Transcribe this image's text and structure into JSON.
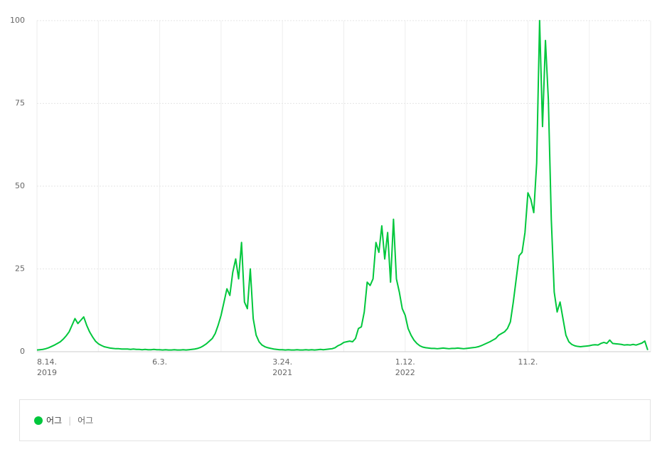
{
  "chart_data": {
    "type": "line",
    "categories": [
      "8.14.",
      null,
      null,
      null,
      null,
      null,
      null,
      null,
      null,
      null,
      null,
      null,
      null,
      null,
      null,
      null,
      null,
      null,
      null,
      null,
      null,
      null,
      null,
      null,
      null,
      null,
      null,
      null,
      null,
      null,
      null,
      null,
      null,
      null,
      null,
      null,
      null,
      null,
      null,
      null,
      null,
      null,
      "6.3.",
      null,
      null,
      null,
      null,
      null,
      null,
      null,
      null,
      null,
      null,
      null,
      null,
      null,
      null,
      null,
      null,
      null,
      null,
      null,
      null,
      null,
      null,
      null,
      null,
      null,
      null,
      null,
      null,
      null,
      null,
      null,
      null,
      null,
      null,
      null,
      null,
      null,
      null,
      null,
      null,
      null,
      "3.24.",
      null,
      null,
      null,
      null,
      null,
      null,
      null,
      null,
      null,
      null,
      null,
      null,
      null,
      null,
      null,
      null,
      null,
      null,
      null,
      null,
      null,
      null,
      null,
      null,
      null,
      null,
      null,
      null,
      null,
      null,
      null,
      null,
      null,
      null,
      null,
      null,
      null,
      null,
      null,
      null,
      null,
      "1.12.",
      null,
      null,
      null,
      null,
      null,
      null,
      null,
      null,
      null,
      null,
      null,
      null,
      null,
      null,
      null,
      null,
      null,
      null,
      null,
      null,
      null,
      null,
      null,
      null,
      null,
      null,
      null,
      null,
      null,
      null,
      null,
      null,
      null,
      null,
      null,
      null,
      null,
      null,
      null,
      null,
      null,
      "11.2.",
      null,
      null,
      null,
      null,
      null,
      null,
      null,
      null,
      null,
      null,
      null,
      null,
      null,
      null,
      null,
      null,
      null,
      null,
      null,
      null,
      null,
      null,
      null,
      null,
      null,
      null,
      null,
      null,
      null,
      null,
      null,
      null,
      null,
      null,
      null,
      null,
      null,
      null,
      null,
      null,
      null
    ],
    "category_years": [
      "2019",
      null,
      null,
      null,
      null,
      null,
      null,
      null,
      null,
      null,
      null,
      null,
      null,
      null,
      null,
      null,
      null,
      null,
      null,
      null,
      null,
      null,
      null,
      null,
      null,
      null,
      null,
      null,
      null,
      null,
      null,
      null,
      null,
      null,
      null,
      null,
      null,
      null,
      null,
      null,
      null,
      null,
      null,
      null,
      null,
      null,
      null,
      null,
      null,
      null,
      null,
      null,
      null,
      null,
      null,
      null,
      null,
      null,
      null,
      null,
      null,
      null,
      null,
      null,
      null,
      null,
      null,
      null,
      null,
      null,
      null,
      null,
      null,
      null,
      null,
      null,
      null,
      null,
      null,
      null,
      null,
      null,
      null,
      null,
      "2021",
      null,
      null,
      null,
      null,
      null,
      null,
      null,
      null,
      null,
      null,
      null,
      null,
      null,
      null,
      null,
      null,
      null,
      null,
      null,
      null,
      null,
      null,
      null,
      null,
      null,
      null,
      null,
      null,
      null,
      null,
      null,
      null,
      null,
      null,
      null,
      null,
      null,
      null,
      null,
      null,
      null,
      "2022",
      null,
      null,
      null,
      null,
      null,
      null,
      null,
      null,
      null,
      null,
      null,
      null,
      null,
      null,
      null,
      null,
      null,
      null,
      null,
      null,
      null,
      null,
      null,
      null,
      null,
      null,
      null,
      null,
      null,
      null,
      null,
      null,
      null,
      null,
      null,
      null,
      null,
      null,
      null,
      null,
      null,
      null,
      null,
      null,
      null,
      null,
      null,
      null,
      null,
      null,
      null,
      null,
      null,
      null,
      null,
      null,
      null,
      null,
      null,
      null,
      null,
      null,
      null,
      null,
      null,
      null,
      null,
      null,
      null,
      null,
      null,
      null,
      null,
      null,
      null,
      null,
      null,
      null,
      null,
      null,
      null,
      null,
      null
    ],
    "series": [
      {
        "name": "어그",
        "color": "#00c73c",
        "values": [
          0.5,
          0.6,
          0.7,
          0.9,
          1.2,
          1.6,
          2.0,
          2.5,
          3.0,
          3.8,
          4.8,
          6,
          8,
          10,
          8.5,
          9.5,
          10.5,
          8,
          6,
          4.5,
          3.2,
          2.4,
          1.9,
          1.5,
          1.3,
          1.1,
          1.0,
          0.9,
          0.9,
          0.8,
          0.8,
          0.8,
          0.7,
          0.8,
          0.7,
          0.7,
          0.6,
          0.7,
          0.6,
          0.6,
          0.7,
          0.6,
          0.6,
          0.5,
          0.6,
          0.5,
          0.5,
          0.6,
          0.5,
          0.5,
          0.6,
          0.5,
          0.6,
          0.7,
          0.8,
          1.0,
          1.3,
          1.8,
          2.4,
          3.2,
          4.0,
          5.5,
          8,
          11,
          15,
          19,
          17,
          24,
          28,
          22,
          33,
          15,
          13,
          25,
          10,
          5,
          3,
          2,
          1.5,
          1.2,
          1.0,
          0.8,
          0.7,
          0.6,
          0.6,
          0.5,
          0.6,
          0.5,
          0.5,
          0.6,
          0.5,
          0.5,
          0.6,
          0.5,
          0.6,
          0.5,
          0.6,
          0.7,
          0.6,
          0.7,
          0.8,
          0.9,
          1.2,
          1.8,
          2.2,
          2.8,
          3.0,
          3.2,
          3.0,
          4,
          7,
          7.5,
          12,
          21,
          20,
          22,
          33,
          30,
          38,
          28,
          36,
          21,
          40,
          22,
          18,
          13,
          11,
          7,
          5,
          3.5,
          2.5,
          1.8,
          1.4,
          1.2,
          1.1,
          1.0,
          1.0,
          0.9,
          1.0,
          1.1,
          1.0,
          0.9,
          1.0,
          1.0,
          1.1,
          1.0,
          0.9,
          1.0,
          1.1,
          1.2,
          1.3,
          1.5,
          1.8,
          2.2,
          2.6,
          3,
          3.5,
          4,
          5,
          5.5,
          6,
          7,
          9,
          15,
          22,
          29,
          30,
          36,
          48,
          46,
          42,
          57,
          100,
          68,
          94,
          76,
          40,
          18,
          12,
          15,
          10,
          5,
          3,
          2.2,
          1.8,
          1.6,
          1.5,
          1.6,
          1.7,
          1.8,
          2.0,
          2.1,
          2.0,
          2.5,
          2.8,
          2.5,
          3.5,
          2.5,
          2.4,
          2.3,
          2.2,
          2.0,
          2.1,
          2.0,
          2.2,
          2.0,
          2.3,
          2.6,
          3.2,
          0.5
        ]
      }
    ],
    "legend_keywords": "어그",
    "ylim": [
      0,
      100
    ],
    "yticks": [
      0,
      25,
      50,
      75,
      100
    ],
    "grid": true
  }
}
